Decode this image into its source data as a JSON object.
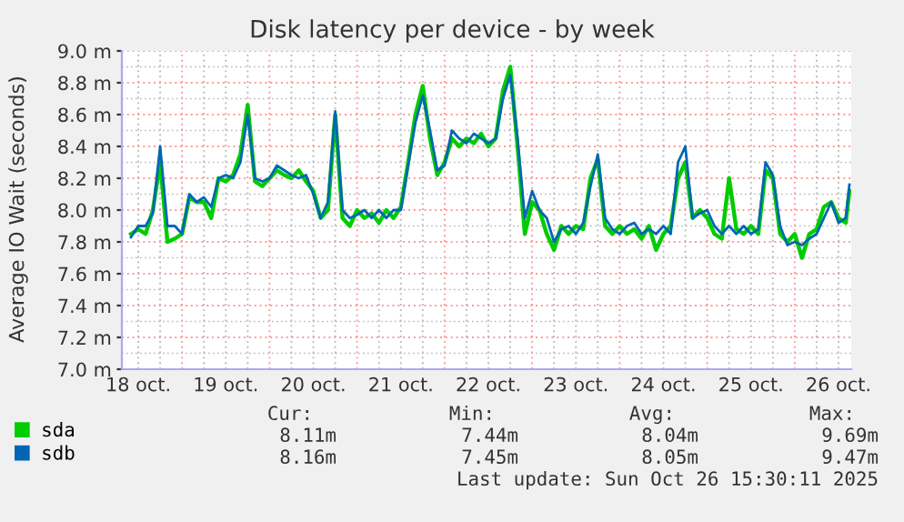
{
  "chart_data": {
    "type": "line",
    "title": "Disk latency per device - by week",
    "ylabel": "Average IO Wait (seconds)",
    "x": [
      "2025-10-18T10:00",
      "2025-10-18T12:00",
      "2025-10-18T14:00",
      "2025-10-18T16:00",
      "2025-10-18T18:00",
      "2025-10-18T20:00",
      "2025-10-18T22:00",
      "2025-10-19T00:00",
      "2025-10-19T02:00",
      "2025-10-19T04:00",
      "2025-10-19T06:00",
      "2025-10-19T08:00",
      "2025-10-19T10:00",
      "2025-10-19T12:00",
      "2025-10-19T14:00",
      "2025-10-19T16:00",
      "2025-10-19T18:00",
      "2025-10-19T20:00",
      "2025-10-19T22:00",
      "2025-10-20T00:00",
      "2025-10-20T02:00",
      "2025-10-20T04:00",
      "2025-10-20T06:00",
      "2025-10-20T08:00",
      "2025-10-20T10:00",
      "2025-10-20T12:00",
      "2025-10-20T14:00",
      "2025-10-20T16:00",
      "2025-10-20T18:00",
      "2025-10-20T20:00",
      "2025-10-20T22:00",
      "2025-10-21T00:00",
      "2025-10-21T02:00",
      "2025-10-21T04:00",
      "2025-10-21T06:00",
      "2025-10-21T08:00",
      "2025-10-21T10:00",
      "2025-10-21T12:00",
      "2025-10-21T14:00",
      "2025-10-21T16:00",
      "2025-10-21T18:00",
      "2025-10-21T20:00",
      "2025-10-21T22:00",
      "2025-10-22T00:00",
      "2025-10-22T02:00",
      "2025-10-22T04:00",
      "2025-10-22T06:00",
      "2025-10-22T08:00",
      "2025-10-22T10:00",
      "2025-10-22T12:00",
      "2025-10-22T14:00",
      "2025-10-22T16:00",
      "2025-10-22T18:00",
      "2025-10-22T20:00",
      "2025-10-22T22:00",
      "2025-10-23T00:00",
      "2025-10-23T02:00",
      "2025-10-23T04:00",
      "2025-10-23T06:00",
      "2025-10-23T08:00",
      "2025-10-23T10:00",
      "2025-10-23T12:00",
      "2025-10-23T14:00",
      "2025-10-23T16:00",
      "2025-10-23T18:00",
      "2025-10-23T20:00",
      "2025-10-23T22:00",
      "2025-10-24T00:00",
      "2025-10-24T02:00",
      "2025-10-24T04:00",
      "2025-10-24T06:00",
      "2025-10-24T08:00",
      "2025-10-24T10:00",
      "2025-10-24T12:00",
      "2025-10-24T14:00",
      "2025-10-24T16:00",
      "2025-10-24T18:00",
      "2025-10-24T20:00",
      "2025-10-24T22:00",
      "2025-10-25T00:00",
      "2025-10-25T02:00",
      "2025-10-25T04:00",
      "2025-10-25T06:00",
      "2025-10-25T08:00",
      "2025-10-25T10:00",
      "2025-10-25T12:00",
      "2025-10-25T14:00",
      "2025-10-25T16:00",
      "2025-10-25T18:00",
      "2025-10-25T20:00",
      "2025-10-25T22:00",
      "2025-10-26T00:00",
      "2025-10-26T02:00",
      "2025-10-26T04:00",
      "2025-10-26T06:00",
      "2025-10-26T08:00",
      "2025-10-26T10:00",
      "2025-10-26T12:00",
      "2025-10-26T14:00",
      "2025-10-26T15:00"
    ],
    "series": [
      {
        "name": "sda",
        "color": "#00cc00",
        "values": [
          7.85,
          7.88,
          7.85,
          8.0,
          8.3,
          7.8,
          7.82,
          7.85,
          8.08,
          8.05,
          8.05,
          7.95,
          8.2,
          8.18,
          8.22,
          8.35,
          8.66,
          8.18,
          8.15,
          8.2,
          8.25,
          8.22,
          8.2,
          8.25,
          8.18,
          8.12,
          7.95,
          8.0,
          8.6,
          7.95,
          7.9,
          8.0,
          7.95,
          7.98,
          7.92,
          8.0,
          7.95,
          8.02,
          8.3,
          8.6,
          8.78,
          8.45,
          8.22,
          8.3,
          8.45,
          8.4,
          8.45,
          8.42,
          8.48,
          8.4,
          8.45,
          8.75,
          8.9,
          8.4,
          7.85,
          8.05,
          8.0,
          7.85,
          7.75,
          7.9,
          7.85,
          7.9,
          7.88,
          8.2,
          8.32,
          7.9,
          7.85,
          7.9,
          7.85,
          7.88,
          7.82,
          7.9,
          7.75,
          7.85,
          7.9,
          8.2,
          8.3,
          7.95,
          8.0,
          7.95,
          7.85,
          7.82,
          8.2,
          7.88,
          7.85,
          7.9,
          7.85,
          8.25,
          8.2,
          7.85,
          7.8,
          7.85,
          7.7,
          7.85,
          7.88,
          8.02,
          8.05,
          7.95,
          7.92,
          8.12
        ]
      },
      {
        "name": "sdb",
        "color": "#0066b3",
        "values": [
          7.83,
          7.9,
          7.9,
          7.98,
          8.4,
          7.9,
          7.9,
          7.85,
          8.1,
          8.05,
          8.08,
          8.02,
          8.2,
          8.22,
          8.2,
          8.3,
          8.6,
          8.2,
          8.18,
          8.2,
          8.28,
          8.25,
          8.22,
          8.2,
          8.22,
          8.1,
          7.95,
          8.05,
          8.62,
          8.0,
          7.95,
          7.97,
          8.0,
          7.95,
          8.0,
          7.95,
          8.0,
          8.0,
          8.28,
          8.55,
          8.72,
          8.5,
          8.25,
          8.28,
          8.5,
          8.45,
          8.42,
          8.48,
          8.45,
          8.42,
          8.45,
          8.7,
          8.85,
          8.45,
          7.95,
          8.12,
          8.0,
          7.95,
          7.8,
          7.88,
          7.9,
          7.85,
          7.92,
          8.15,
          8.35,
          7.95,
          7.88,
          7.85,
          7.9,
          7.92,
          7.85,
          7.88,
          7.85,
          7.9,
          7.85,
          8.3,
          8.4,
          7.95,
          7.98,
          8.0,
          7.9,
          7.85,
          7.9,
          7.85,
          7.9,
          7.85,
          7.88,
          8.3,
          8.22,
          7.9,
          7.78,
          7.8,
          7.78,
          7.82,
          7.85,
          7.95,
          8.05,
          7.92,
          7.95,
          8.16
        ]
      }
    ],
    "xlim": [
      "2025-10-18T07:30",
      "2025-10-26T15:30"
    ],
    "xticks": [
      {
        "value": "2025-10-18T12:00",
        "label": "18 oct."
      },
      {
        "value": "2025-10-19T12:00",
        "label": "19 oct."
      },
      {
        "value": "2025-10-20T12:00",
        "label": "20 oct."
      },
      {
        "value": "2025-10-21T12:00",
        "label": "21 oct."
      },
      {
        "value": "2025-10-22T12:00",
        "label": "22 oct."
      },
      {
        "value": "2025-10-23T12:00",
        "label": "23 oct."
      },
      {
        "value": "2025-10-24T12:00",
        "label": "24 oct."
      },
      {
        "value": "2025-10-25T12:00",
        "label": "25 oct."
      },
      {
        "value": "2025-10-26T12:00",
        "label": "26 oct."
      }
    ],
    "ylim": [
      7.0,
      9.0
    ],
    "yticks": [
      {
        "value": 7.0,
        "label": "7.0 m"
      },
      {
        "value": 7.2,
        "label": "7.2 m"
      },
      {
        "value": 7.4,
        "label": "7.4 m"
      },
      {
        "value": 7.6,
        "label": "7.6 m"
      },
      {
        "value": 7.8,
        "label": "7.8 m"
      },
      {
        "value": 8.0,
        "label": "8.0 m"
      },
      {
        "value": 8.2,
        "label": "8.2 m"
      },
      {
        "value": 8.4,
        "label": "8.4 m"
      },
      {
        "value": 8.6,
        "label": "8.6 m"
      },
      {
        "value": 8.8,
        "label": "8.8 m"
      },
      {
        "value": 9.0,
        "label": "9.0 m"
      }
    ],
    "grid": true,
    "legend": "bottom left",
    "marker": "none",
    "line_style": "solid",
    "annotations": [
      "Cur:",
      "Min:",
      "Avg:",
      "Max:",
      "8.11m",
      "7.44m",
      "8.04m",
      "9.69m",
      "8.16m",
      "7.45m",
      "8.05m",
      "9.47m",
      "Last update: Sun Oct 26 15:30:11 2025"
    ]
  }
}
